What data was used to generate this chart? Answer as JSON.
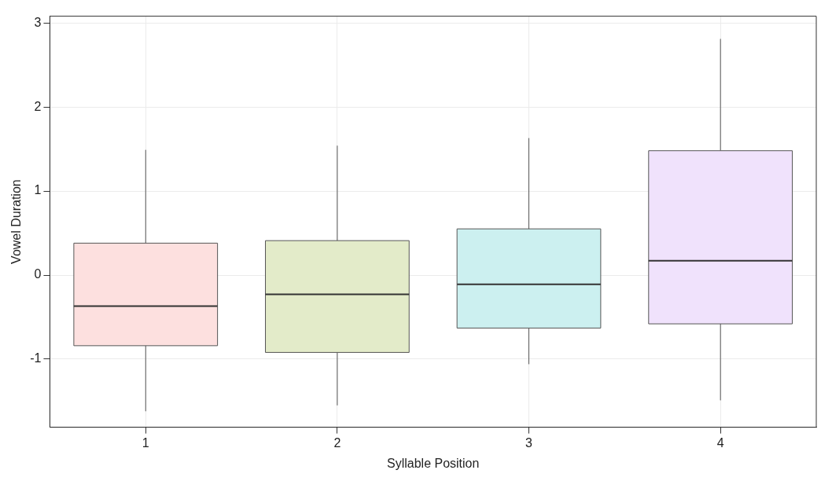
{
  "chart_data": {
    "type": "box",
    "xlabel": "Syllable Position",
    "ylabel": "Vowel Duration",
    "categories": [
      "1",
      "2",
      "3",
      "4"
    ],
    "boxes": [
      {
        "low": -1.62,
        "q1": -0.84,
        "median": -0.37,
        "q3": 0.38,
        "high": 1.49
      },
      {
        "low": -1.55,
        "q1": -0.92,
        "median": -0.23,
        "q3": 0.41,
        "high": 1.54
      },
      {
        "low": -1.06,
        "q1": -0.63,
        "median": -0.11,
        "q3": 0.55,
        "high": 1.63
      },
      {
        "low": -1.49,
        "q1": -0.58,
        "median": 0.17,
        "q3": 1.48,
        "high": 2.81
      }
    ],
    "colors": [
      "#fde0df",
      "#e3ebc9",
      "#ccf0f0",
      "#f0e2fc"
    ],
    "ylim": [
      -1.81,
      3.08
    ],
    "yticks": [
      -1,
      0,
      1,
      2,
      3
    ],
    "grid": true,
    "legend": false
  }
}
